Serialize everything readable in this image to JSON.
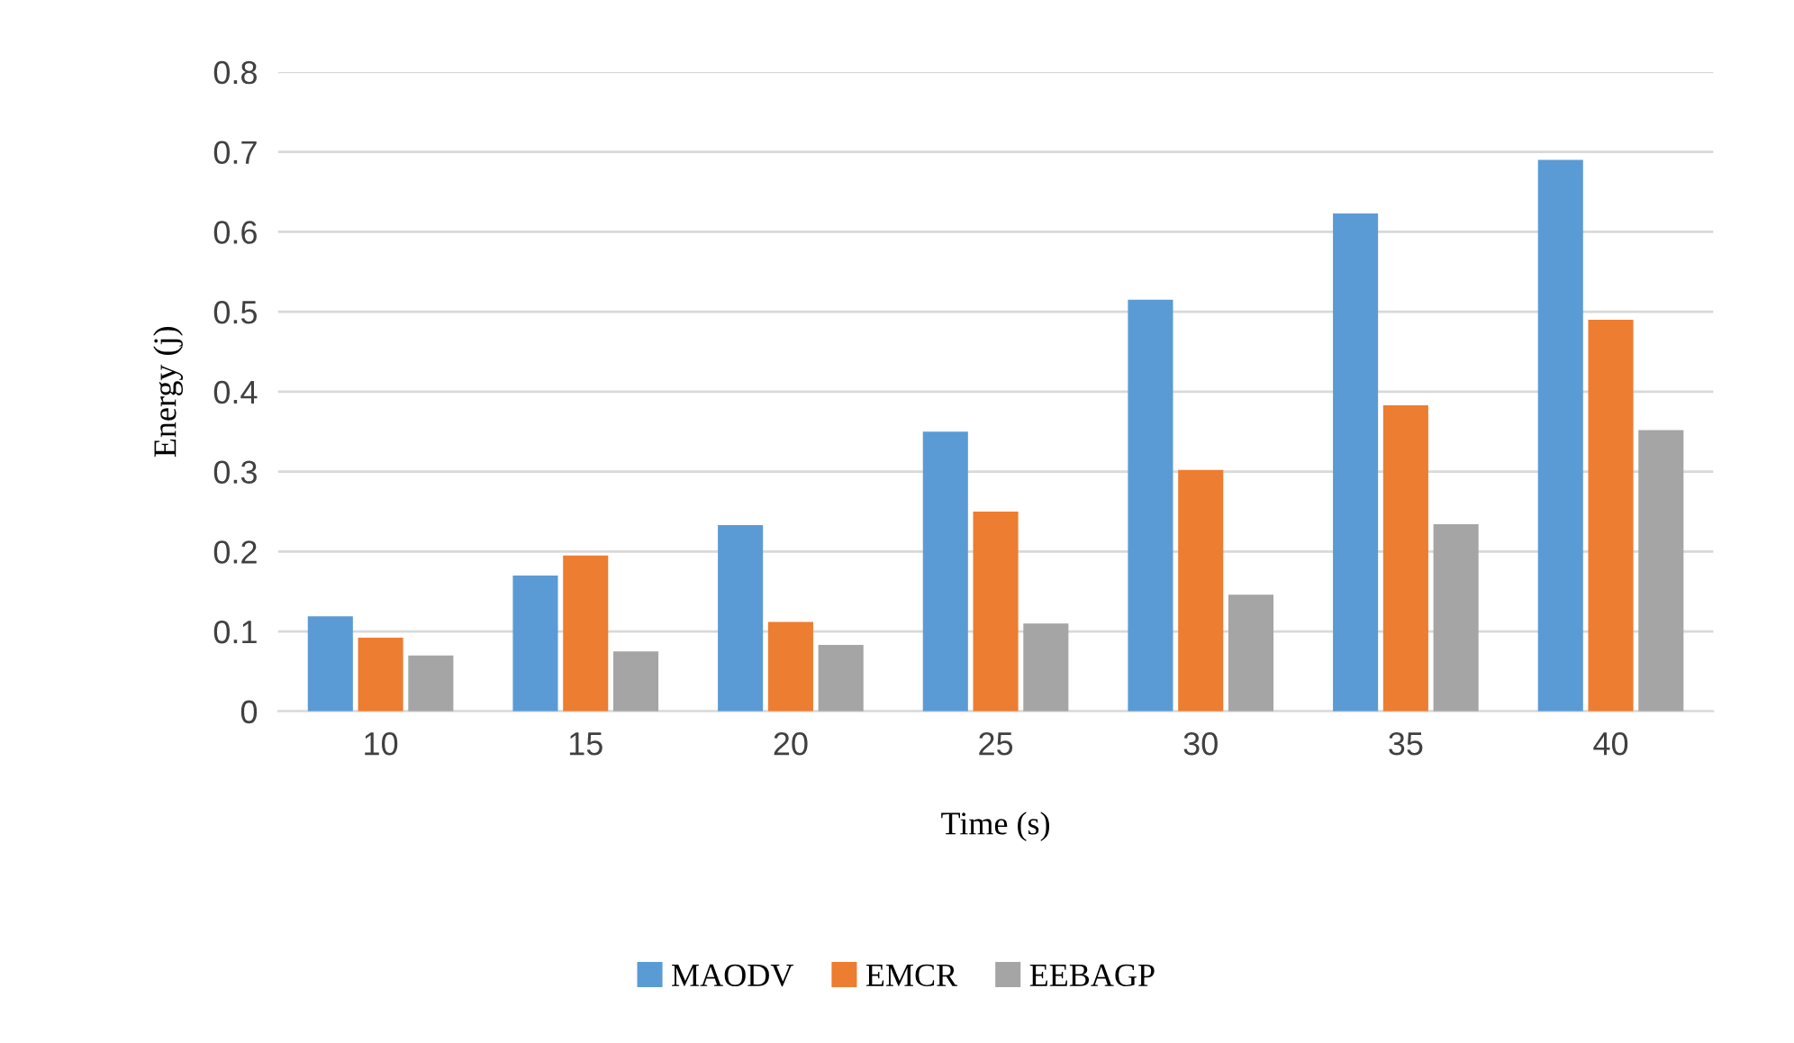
{
  "chart_data": {
    "type": "bar",
    "xlabel": "Time (s)",
    "ylabel": "Energy (j)",
    "categories": [
      "10",
      "15",
      "20",
      "25",
      "30",
      "35",
      "40"
    ],
    "series": [
      {
        "name": "MAODV",
        "color": "#5b9bd5",
        "values": [
          0.119,
          0.17,
          0.233,
          0.35,
          0.515,
          0.623,
          0.69
        ]
      },
      {
        "name": "EMCR",
        "color": "#ed7d31",
        "values": [
          0.092,
          0.195,
          0.112,
          0.25,
          0.302,
          0.383,
          0.49
        ]
      },
      {
        "name": "EEBAGP",
        "color": "#a5a5a5",
        "values": [
          0.07,
          0.075,
          0.083,
          0.11,
          0.146,
          0.234,
          0.352
        ]
      }
    ],
    "ylim": [
      0,
      0.8
    ],
    "yticks": [
      0,
      0.1,
      0.2,
      0.3,
      0.4,
      0.5,
      0.6,
      0.7,
      0.8
    ],
    "grid": "y",
    "legend": "bottom"
  }
}
